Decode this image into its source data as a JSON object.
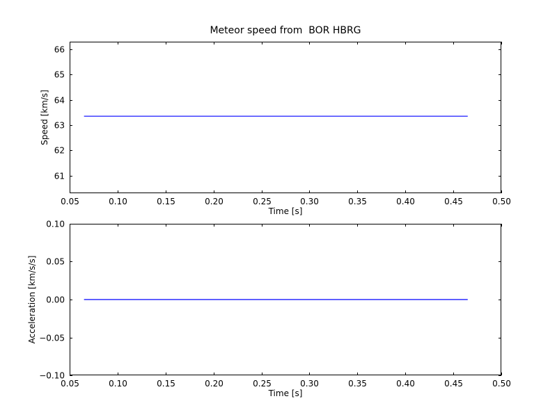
{
  "figure": {
    "background": "#ffffff",
    "axis_color": "#000000",
    "line_color": "#0000ff"
  },
  "chart_data": [
    {
      "type": "line",
      "title": "Meteor speed from  BOR HBRG",
      "xlabel": "Time [s]",
      "ylabel": "Speed [km/s]",
      "xlim": [
        0.05,
        0.5
      ],
      "ylim": [
        60.3,
        66.3
      ],
      "xticks": [
        0.05,
        0.1,
        0.15,
        0.2,
        0.25,
        0.3,
        0.35,
        0.4,
        0.45,
        0.5
      ],
      "xtick_labels": [
        "0.05",
        "0.10",
        "0.15",
        "0.20",
        "0.25",
        "0.30",
        "0.35",
        "0.40",
        "0.45",
        "0.50"
      ],
      "yticks": [
        61,
        62,
        63,
        64,
        65,
        66
      ],
      "ytick_labels": [
        "61",
        "62",
        "63",
        "64",
        "65",
        "66"
      ],
      "grid": false,
      "series": [
        {
          "name": "speed",
          "x": [
            0.065,
            0.465
          ],
          "y": [
            63.35,
            63.35
          ]
        }
      ]
    },
    {
      "type": "line",
      "title": "",
      "xlabel": "Time [s]",
      "ylabel": "Acceleration [km/s/s]",
      "xlim": [
        0.05,
        0.5
      ],
      "ylim": [
        -0.1,
        0.1
      ],
      "xticks": [
        0.05,
        0.1,
        0.15,
        0.2,
        0.25,
        0.3,
        0.35,
        0.4,
        0.45,
        0.5
      ],
      "xtick_labels": [
        "0.05",
        "0.10",
        "0.15",
        "0.20",
        "0.25",
        "0.30",
        "0.35",
        "0.40",
        "0.45",
        "0.50"
      ],
      "yticks": [
        -0.1,
        -0.05,
        0.0,
        0.05,
        0.1
      ],
      "ytick_labels": [
        "−0.10",
        "−0.05",
        "0.00",
        "0.05",
        "0.10"
      ],
      "grid": false,
      "series": [
        {
          "name": "acceleration",
          "x": [
            0.065,
            0.465
          ],
          "y": [
            0.0,
            0.0
          ]
        }
      ]
    }
  ]
}
